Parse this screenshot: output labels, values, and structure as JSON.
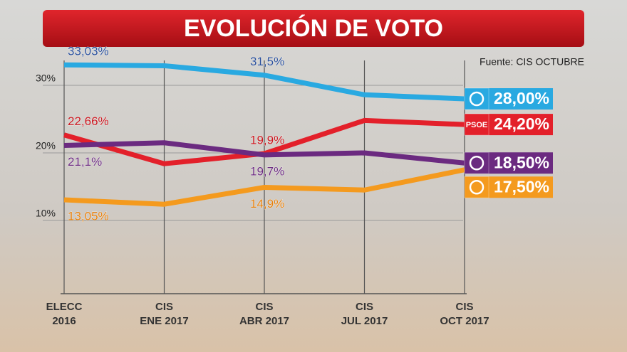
{
  "chart_data": {
    "type": "line",
    "title": "EVOLUCIÓN DE VOTO",
    "source": "Fuente: CIS OCTUBRE",
    "categories": [
      [
        "ELECC",
        "2016"
      ],
      [
        "CIS",
        "ENE 2017"
      ],
      [
        "CIS",
        "ABR 2017"
      ],
      [
        "CIS",
        "JUL 2017"
      ],
      [
        "CIS",
        "OCT 2017"
      ]
    ],
    "ylim": [
      0,
      35
    ],
    "yticks": [
      {
        "value": 10,
        "label": "10%"
      },
      {
        "value": 20,
        "label": "20%"
      },
      {
        "value": 30,
        "label": "30%"
      }
    ],
    "grid": true,
    "series": [
      {
        "color": "#29a9e1",
        "label_color": "#2a4f9a",
        "label_position": "above",
        "values": [
          33.03,
          32.9,
          31.5,
          28.6,
          28.0
        ],
        "value_labels": [
          "33,03%",
          null,
          "31,5%",
          null,
          "28,00%"
        ]
      },
      {
        "color": "#e3202a",
        "label_color": "#c8141c",
        "label_position": "above",
        "badge": "PSOE",
        "values": [
          22.66,
          18.4,
          19.9,
          24.8,
          24.2
        ],
        "value_labels": [
          "22,66%",
          null,
          "19,9%",
          null,
          "24,20%"
        ]
      },
      {
        "color": "#6b2a80",
        "label_color": "#6b2a80",
        "label_position": "below",
        "values": [
          21.1,
          21.5,
          19.7,
          20.0,
          18.5
        ],
        "value_labels": [
          "21,1%",
          null,
          "19,7%",
          null,
          "18,50%"
        ]
      },
      {
        "color": "#f49a1e",
        "label_color": "#e57f0c",
        "label_position": "below",
        "values": [
          13.05,
          12.4,
          14.9,
          14.5,
          17.5
        ],
        "value_labels": [
          "13,05%",
          null,
          "14,9%",
          null,
          "17,50%"
        ]
      }
    ]
  }
}
